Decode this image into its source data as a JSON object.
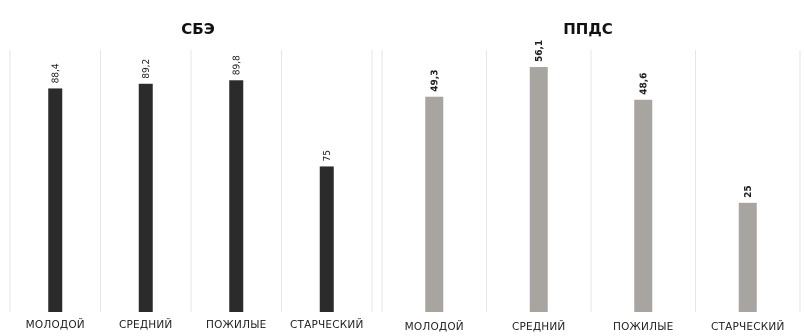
{
  "chart_data": [
    {
      "type": "bar",
      "title": "СБЭ",
      "categories": [
        "МОЛОДОЙ",
        "СРЕДНИЙ",
        "ПОЖИЛЫЕ",
        "СТАРЧЕСКИЙ"
      ],
      "values": [
        88.4,
        89.2,
        89.8,
        75
      ],
      "value_labels": [
        "88,4",
        "89,2",
        "89,8",
        "75"
      ],
      "bar_color": "#2b2b2b",
      "ylim": [
        50,
        95
      ],
      "grid": "vertical separators",
      "legend": "none"
    },
    {
      "type": "bar",
      "title": "ППДС",
      "categories": [
        "МОЛОДОЙ",
        "СРЕДНИЙ",
        "ПОЖИЛЫЕ",
        "СТАРЧЕСКИЙ"
      ],
      "values": [
        49.3,
        56.1,
        48.6,
        25
      ],
      "value_labels": [
        "49,3",
        "56,1",
        "48,6",
        "25"
      ],
      "bar_color": "#a8a5a1",
      "ylim": [
        0,
        60
      ],
      "grid": "vertical separators",
      "legend": "none"
    }
  ]
}
